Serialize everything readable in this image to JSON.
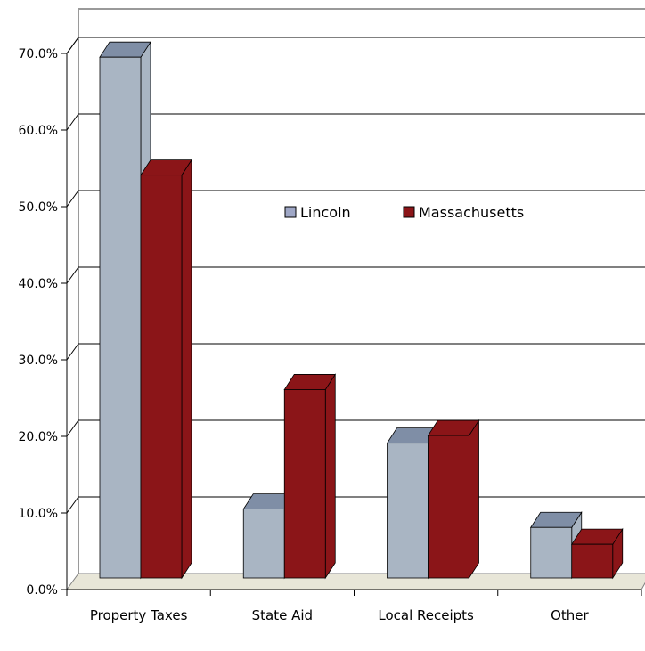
{
  "chart_data": {
    "type": "bar",
    "style": "3d-clustered-column",
    "title": "",
    "xlabel": "",
    "ylabel": "",
    "categories": [
      "Property Taxes",
      "State Aid",
      "Local Receipts",
      "Other"
    ],
    "series": [
      {
        "name": "Lincoln",
        "values": [
          68.0,
          9.0,
          17.6,
          6.6
        ],
        "color": "#a9b5c3",
        "top_color": "#7f8ea6"
      },
      {
        "name": "Massachusetts",
        "values": [
          52.6,
          24.6,
          18.6,
          4.4
        ],
        "color": "#8b1518",
        "top_color": "#8b1518"
      }
    ],
    "ylim": [
      0,
      70
    ],
    "yticks": [
      "0.0%",
      "10.0%",
      "20.0%",
      "30.0%",
      "40.0%",
      "50.0%",
      "60.0%",
      "70.0%"
    ],
    "grid": true,
    "legend_position": "upper-center",
    "floor_color": "#e8e6d8"
  }
}
